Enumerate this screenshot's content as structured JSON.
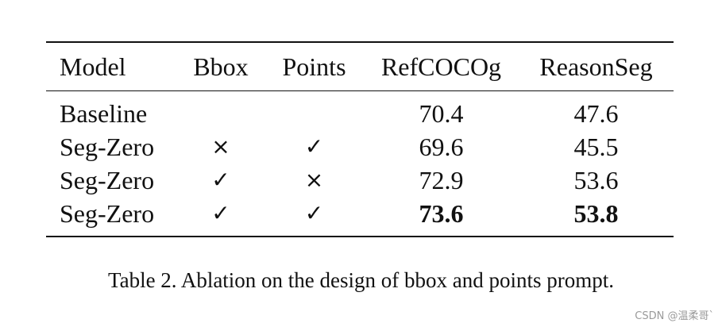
{
  "table": {
    "headers": [
      "Model",
      "Bbox",
      "Points",
      "RefCOCOg",
      "ReasonSeg"
    ],
    "rows": [
      {
        "model": "Baseline",
        "bbox": "",
        "points": "",
        "refcocog": "70.4",
        "reasonseg": "47.6"
      },
      {
        "model": "Seg-Zero",
        "bbox": "×",
        "points": "✓",
        "refcocog": "69.6",
        "reasonseg": "45.5"
      },
      {
        "model": "Seg-Zero",
        "bbox": "✓",
        "points": "×",
        "refcocog": "72.9",
        "reasonseg": "53.6"
      },
      {
        "model": "Seg-Zero",
        "bbox": "✓",
        "points": "✓",
        "refcocog": "73.6",
        "reasonseg": "53.8"
      }
    ]
  },
  "caption": "Table 2. Ablation on the design of bbox and points prompt.",
  "watermark": "CSDN @温柔哥`"
}
